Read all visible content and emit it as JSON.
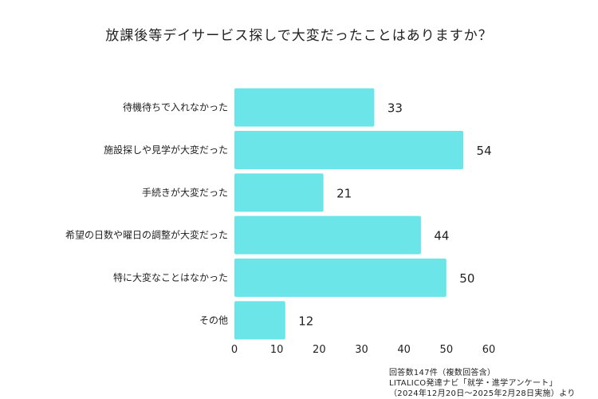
{
  "chart_data": {
    "type": "bar",
    "orientation": "horizontal",
    "title": "放課後等デイサービス探しで大変だったことはありますか？",
    "categories": [
      "待機待ちで入れなかった",
      "施設探しや見学が大変だった",
      "手続きが大変だった",
      "希望の日数や曜日の調整が大変だった",
      "特に大変なことはなかった",
      "その他"
    ],
    "values": [
      33,
      54,
      21,
      44,
      50,
      12
    ],
    "xlim": [
      0,
      60
    ],
    "xticks": [
      0,
      10,
      20,
      30,
      40,
      50,
      60
    ],
    "bar_color": "#6ce5e8",
    "grid": false
  },
  "notes": {
    "line1": "回答数147件（複数回答含）",
    "line2": "LITALICO発達ナビ「就学・進学アンケート」",
    "line3": "（2024年12月20日〜2025年2月28日実施）より"
  }
}
